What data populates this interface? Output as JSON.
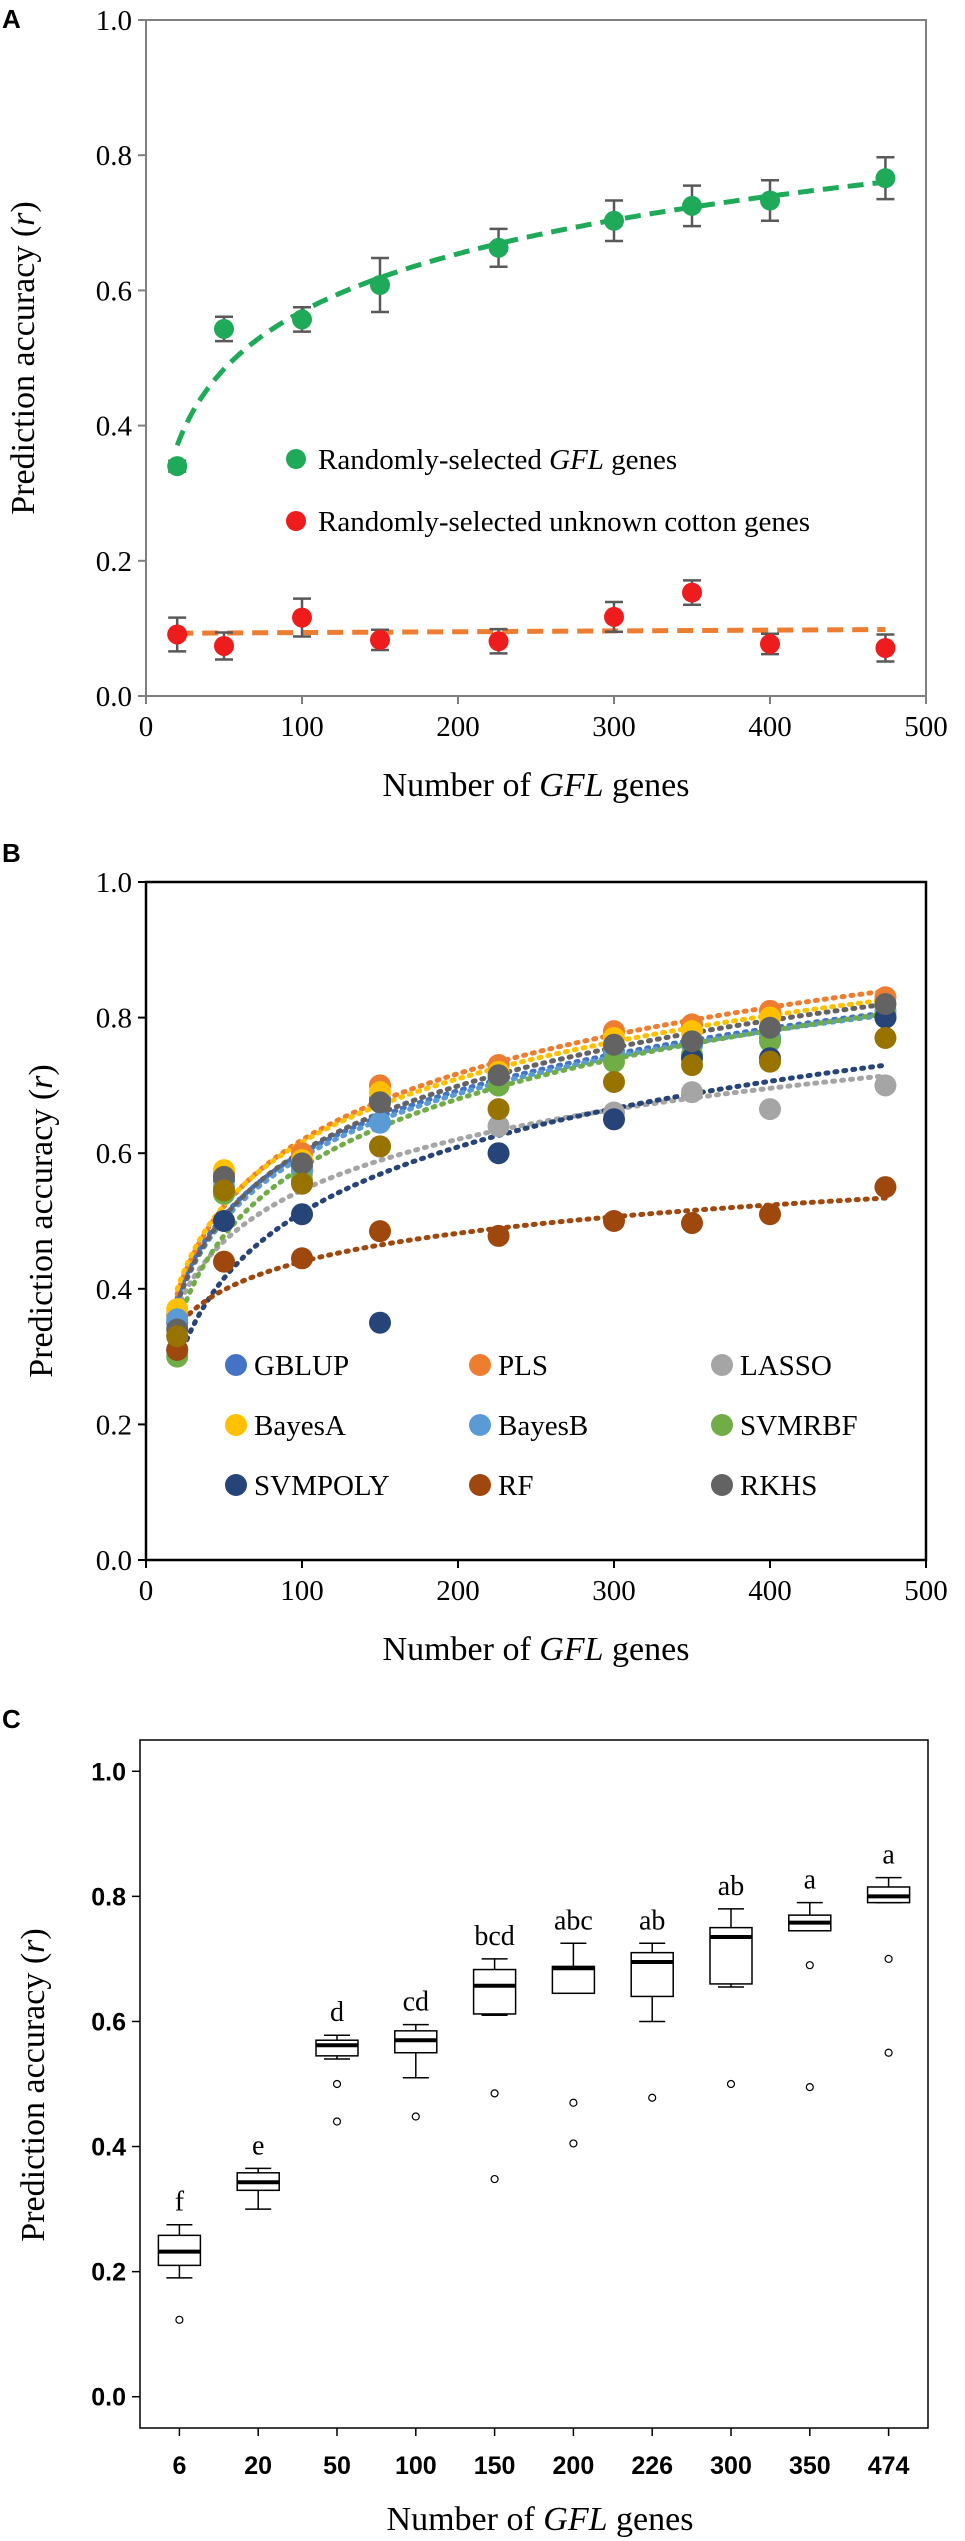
{
  "chart_data": [
    {
      "panel": "A",
      "type": "scatter",
      "xlabel_pre": "Number of ",
      "xlabel_em": "GFL",
      "xlabel_post": " genes",
      "ylabel_pre": "Prediction accuracy (",
      "ylabel_em": "r",
      "ylabel_post": ")",
      "xlim": [
        0,
        500
      ],
      "ylim": [
        0,
        1
      ],
      "xticks": [
        0,
        100,
        200,
        300,
        400,
        500
      ],
      "xtick_labels": [
        "0",
        "100",
        "200",
        "300",
        "400",
        "500"
      ],
      "yticks": [
        0,
        0.2,
        0.4,
        0.6,
        0.8,
        1.0
      ],
      "ytick_labels": [
        "0.0",
        "0.2",
        "0.4",
        "0.6",
        "0.8",
        "1.0"
      ],
      "series": [
        {
          "name": "Randomly-selected GFL genes",
          "legend_pre": "Randomly-selected ",
          "legend_em": "GFL",
          "legend_post": " genes",
          "color": "#1faa59",
          "trend_color": "#1faa59",
          "trend": "log",
          "x": [
            20,
            50,
            100,
            150,
            226,
            300,
            350,
            400,
            474
          ],
          "y": [
            0.34,
            0.543,
            0.557,
            0.608,
            0.663,
            0.703,
            0.725,
            0.733,
            0.766
          ],
          "err": [
            0.008,
            0.018,
            0.018,
            0.04,
            0.028,
            0.03,
            0.03,
            0.03,
            0.031
          ]
        },
        {
          "name": "Randomly-selected unknown cotton genes",
          "legend_pre": "Randomly-selected unknown cotton genes",
          "legend_em": "",
          "legend_post": "",
          "color": "#ee1c1c",
          "trend_color": "#ed7d31",
          "trend": "flat",
          "x": [
            20,
            50,
            100,
            150,
            226,
            300,
            350,
            400,
            474
          ],
          "y": [
            0.091,
            0.074,
            0.116,
            0.083,
            0.081,
            0.117,
            0.153,
            0.077,
            0.071
          ],
          "err": [
            0.025,
            0.02,
            0.028,
            0.015,
            0.018,
            0.022,
            0.018,
            0.015,
            0.02
          ]
        }
      ]
    },
    {
      "panel": "B",
      "type": "scatter",
      "xlabel_pre": "Number of ",
      "xlabel_em": "GFL",
      "xlabel_post": " genes",
      "ylabel_pre": "Prediction accuracy (",
      "ylabel_em": "r",
      "ylabel_post": ")",
      "xlim": [
        0,
        500
      ],
      "ylim": [
        0,
        1
      ],
      "xticks": [
        0,
        100,
        200,
        300,
        400,
        500
      ],
      "xtick_labels": [
        "0",
        "100",
        "200",
        "300",
        "400",
        "500"
      ],
      "yticks": [
        0,
        0.2,
        0.4,
        0.6,
        0.8,
        1.0
      ],
      "ytick_labels": [
        "0.0",
        "0.2",
        "0.4",
        "0.6",
        "0.8",
        "1.0"
      ],
      "x": [
        20,
        50,
        100,
        150,
        226,
        300,
        350,
        400,
        474
      ],
      "series": [
        {
          "name": "GBLUP",
          "color": "#4472c4",
          "y": [
            0.35,
            0.56,
            0.58,
            0.68,
            0.71,
            0.75,
            0.76,
            0.77,
            0.8
          ]
        },
        {
          "name": "PLS",
          "color": "#ed7d31",
          "y": [
            0.36,
            0.57,
            0.6,
            0.7,
            0.73,
            0.78,
            0.79,
            0.81,
            0.83
          ]
        },
        {
          "name": "LASSO",
          "color": "#a5a5a5",
          "y": [
            0.33,
            0.5,
            0.57,
            0.61,
            0.64,
            0.66,
            0.69,
            0.665,
            0.7
          ]
        },
        {
          "name": "BayesA",
          "color": "#ffc000",
          "y": [
            0.37,
            0.575,
            0.59,
            0.69,
            0.72,
            0.77,
            0.78,
            0.8,
            0.82
          ]
        },
        {
          "name": "BayesB",
          "color": "#5b9bd5",
          "y": [
            0.355,
            0.55,
            0.575,
            0.645,
            0.7,
            0.75,
            0.76,
            0.77,
            0.81
          ]
        },
        {
          "name": "SVMRBF",
          "color": "#70ad47",
          "y": [
            0.3,
            0.54,
            0.56,
            0.675,
            0.7,
            0.735,
            0.745,
            0.765,
            0.805
          ]
        },
        {
          "name": "SVMPOLY",
          "color": "#264478",
          "y": [
            0.31,
            0.5,
            0.51,
            0.35,
            0.6,
            0.65,
            0.74,
            0.74,
            0.8
          ]
        },
        {
          "name": "RF",
          "color": "#9e480e",
          "y": [
            0.31,
            0.44,
            0.445,
            0.485,
            0.478,
            0.5,
            0.497,
            0.51,
            0.55
          ]
        },
        {
          "name": "RKHS",
          "color": "#636363",
          "y": [
            0.34,
            0.565,
            0.585,
            0.675,
            0.715,
            0.76,
            0.765,
            0.785,
            0.82
          ]
        },
        {
          "name": "",
          "color": "#997300",
          "y": [
            0.33,
            0.545,
            0.555,
            0.61,
            0.665,
            0.705,
            0.73,
            0.735,
            0.77
          ]
        }
      ]
    },
    {
      "panel": "C",
      "type": "box",
      "xlabel_pre": "Number of ",
      "xlabel_em": "GFL",
      "xlabel_post": " genes",
      "ylabel_pre": "Prediction accuracy (",
      "ylabel_em": "r",
      "ylabel_post": ")",
      "ylim": [
        -0.05,
        1.05
      ],
      "yticks": [
        0,
        0.2,
        0.4,
        0.6,
        0.8,
        1.0
      ],
      "ytick_labels": [
        "0.0",
        "0.2",
        "0.4",
        "0.6",
        "0.8",
        "1.0"
      ],
      "categories": [
        "6",
        "20",
        "50",
        "100",
        "150",
        "200",
        "226",
        "300",
        "350",
        "474"
      ],
      "boxes": [
        {
          "min": 0.19,
          "q1": 0.21,
          "median": 0.232,
          "q3": 0.258,
          "max": 0.275,
          "outliers": [
            0.123
          ],
          "letter": "f"
        },
        {
          "min": 0.3,
          "q1": 0.33,
          "median": 0.343,
          "q3": 0.358,
          "max": 0.365,
          "outliers": [],
          "letter": "e"
        },
        {
          "min": 0.54,
          "q1": 0.545,
          "median": 0.562,
          "q3": 0.57,
          "max": 0.578,
          "outliers": [
            0.5,
            0.44
          ],
          "letter": "d"
        },
        {
          "min": 0.51,
          "q1": 0.55,
          "median": 0.57,
          "q3": 0.585,
          "max": 0.595,
          "outliers": [
            0.448
          ],
          "letter": "cd"
        },
        {
          "min": 0.61,
          "q1": 0.612,
          "median": 0.657,
          "q3": 0.683,
          "max": 0.7,
          "outliers": [
            0.485,
            0.348
          ],
          "letter": "bcd"
        },
        {
          "min": 0.645,
          "q1": 0.645,
          "median": 0.685,
          "q3": 0.688,
          "max": 0.725,
          "outliers": [
            0.47,
            0.405
          ],
          "letter": "abc"
        },
        {
          "min": 0.6,
          "q1": 0.64,
          "median": 0.695,
          "q3": 0.71,
          "max": 0.725,
          "outliers": [
            0.478
          ],
          "letter": "ab"
        },
        {
          "min": 0.655,
          "q1": 0.66,
          "median": 0.735,
          "q3": 0.75,
          "max": 0.78,
          "outliers": [
            0.5
          ],
          "letter": "ab"
        },
        {
          "min": 0.745,
          "q1": 0.745,
          "median": 0.758,
          "q3": 0.77,
          "max": 0.79,
          "outliers": [
            0.69,
            0.495
          ],
          "letter": "a"
        },
        {
          "min": 0.79,
          "q1": 0.79,
          "median": 0.8,
          "q3": 0.815,
          "max": 0.83,
          "outliers": [
            0.7,
            0.55
          ],
          "letter": "a"
        }
      ]
    }
  ]
}
